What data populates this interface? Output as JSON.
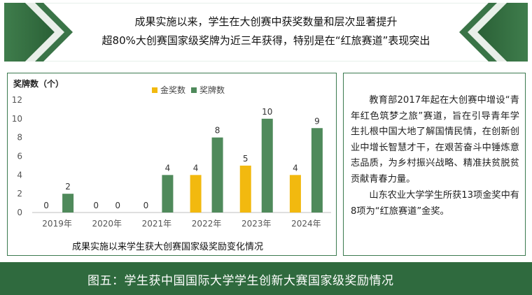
{
  "banner": {
    "line1": "成果实施以来，学生在大创赛中获奖数量和层次显著提升",
    "line2": "超80%大创赛国家级奖牌为近三年获得，特别是在“红旅赛道”表现突出"
  },
  "colors": {
    "gold": "#f2b90f",
    "green": "#4f8a5b",
    "dark_green": "#2f6a3e",
    "border": "#3b7a4f"
  },
  "chart_data": {
    "type": "bar",
    "ylabel": "奖牌数（个）",
    "xlabel": "成果实施以来学生获大创赛国家级奖励变化情况",
    "categories": [
      "2019年",
      "2020年",
      "2021年",
      "2022年",
      "2023年",
      "2024年"
    ],
    "series": [
      {
        "name": "金奖数",
        "values": [
          0,
          0,
          0,
          4,
          5,
          4
        ],
        "color": "#f2b90f"
      },
      {
        "name": "奖牌数",
        "values": [
          2,
          0,
          4,
          8,
          10,
          9
        ],
        "color": "#4f8a5b"
      }
    ],
    "ylim": [
      0,
      12
    ],
    "yticks": [
      0,
      2,
      4,
      6,
      8,
      10,
      12
    ],
    "legend": "top-center",
    "grid": false
  },
  "text_panel": {
    "para1": "教育部2017年起在大创赛中增设“青年红色筑梦之旅”赛道，旨在引导青年学生扎根中国大地了解国情民情，在创新创业中增长智慧才干，在艰苦奋斗中锤炼意志品质，为乡村振兴战略、精准扶贫脱贫贡献青春力量。",
    "para2": "山东农业大学学生所获13项金奖中有8项为“红旅赛道”金奖。"
  },
  "footer": {
    "caption": "图五：学生获中国国际大学学生创新大赛国家级奖励情况"
  }
}
